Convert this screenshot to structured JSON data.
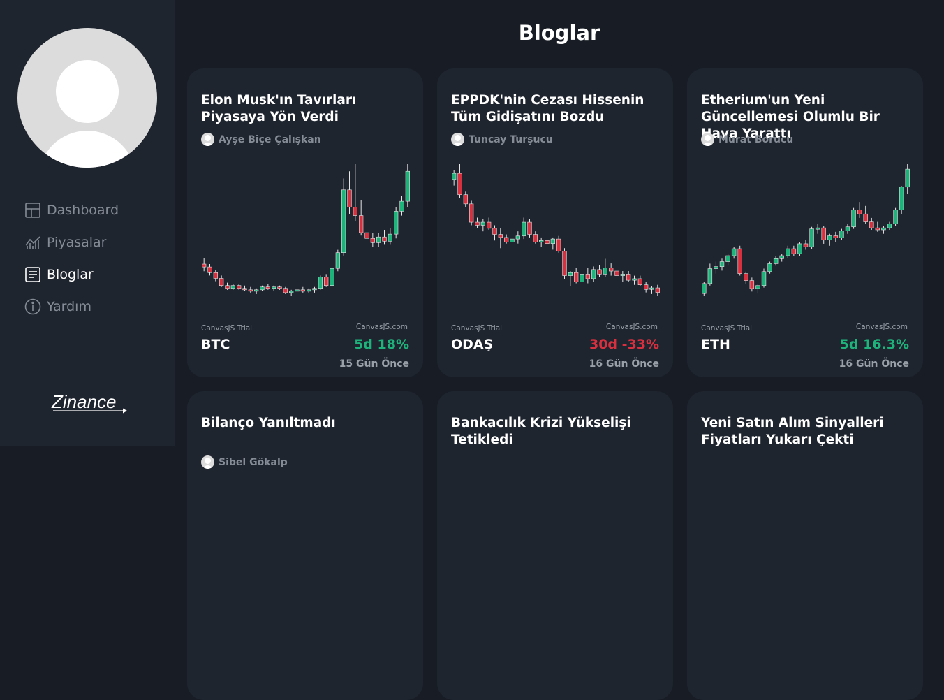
{
  "nav": {
    "items": [
      {
        "label": "Dashboard",
        "icon": "dashboard-icon",
        "active": false
      },
      {
        "label": "Piyasalar",
        "icon": "market-chart-icon",
        "active": false
      },
      {
        "label": "Bloglar",
        "icon": "blog-icon",
        "active": true
      },
      {
        "label": "Yardım",
        "icon": "info-icon",
        "active": false
      }
    ]
  },
  "logo_text": "Zinance",
  "page_title": "Bloglar",
  "colors": {
    "up": "#1fb37c",
    "down": "#d9303f",
    "wick": "#e6e6e6"
  },
  "cards": [
    {
      "title": "Elon Musk'ın Tavırları Piyasaya Yön Verdi",
      "author": "Ayşe Biçe Çalışkan",
      "ticker": "BTC",
      "change": "5d 18%",
      "trend": "up",
      "date": "15 Gün Önce",
      "trial_left": "CanvasJS Trial",
      "trial_right": "CanvasJS.com",
      "chart_data": {
        "type": "candlestick",
        "ohlc": [
          [
            60,
            64,
            55,
            58
          ],
          [
            58,
            60,
            52,
            54
          ],
          [
            54,
            56,
            48,
            50
          ],
          [
            50,
            52,
            44,
            45
          ],
          [
            45,
            47,
            42,
            43
          ],
          [
            43,
            46,
            42,
            45
          ],
          [
            45,
            46,
            42,
            43
          ],
          [
            43,
            45,
            41,
            42
          ],
          [
            42,
            44,
            40,
            41
          ],
          [
            41,
            43,
            39,
            42
          ],
          [
            42,
            45,
            41,
            44
          ],
          [
            44,
            46,
            42,
            43
          ],
          [
            43,
            45,
            41,
            44
          ],
          [
            44,
            45,
            42,
            43
          ],
          [
            43,
            44,
            39,
            40
          ],
          [
            40,
            42,
            38,
            41
          ],
          [
            41,
            43,
            40,
            42
          ],
          [
            42,
            44,
            40,
            41
          ],
          [
            41,
            43,
            40,
            42
          ],
          [
            42,
            44,
            40,
            43
          ],
          [
            43,
            52,
            42,
            51
          ],
          [
            51,
            53,
            44,
            45
          ],
          [
            45,
            58,
            44,
            57
          ],
          [
            57,
            70,
            55,
            68
          ],
          [
            68,
            120,
            66,
            112
          ],
          [
            112,
            125,
            95,
            100
          ],
          [
            100,
            130,
            90,
            94
          ],
          [
            94,
            105,
            80,
            82
          ],
          [
            82,
            88,
            75,
            78
          ],
          [
            78,
            82,
            72,
            75
          ],
          [
            75,
            82,
            72,
            79
          ],
          [
            79,
            84,
            74,
            76
          ],
          [
            76,
            85,
            74,
            81
          ],
          [
            81,
            100,
            78,
            97
          ],
          [
            97,
            108,
            94,
            104
          ],
          [
            104,
            130,
            100,
            125
          ]
        ]
      }
    },
    {
      "title": "EPPDK'nin Cezası Hissenin Tüm Gidişatını Bozdu",
      "author": "Tuncay Turşucu",
      "ticker": "ODAŞ",
      "change": "30d -33%",
      "trend": "down",
      "date": "16 Gün Önce",
      "trial_left": "CanvasJS Trial",
      "trial_right": "CanvasJS.com",
      "chart_data": {
        "type": "candlestick",
        "ohlc": [
          [
            100,
            106,
            96,
            104
          ],
          [
            104,
            110,
            88,
            90
          ],
          [
            90,
            92,
            82,
            84
          ],
          [
            84,
            86,
            70,
            72
          ],
          [
            72,
            75,
            68,
            70
          ],
          [
            70,
            74,
            66,
            72
          ],
          [
            72,
            75,
            67,
            68
          ],
          [
            68,
            70,
            60,
            64
          ],
          [
            64,
            68,
            55,
            62
          ],
          [
            62,
            64,
            58,
            59
          ],
          [
            59,
            63,
            55,
            61
          ],
          [
            61,
            66,
            58,
            63
          ],
          [
            63,
            75,
            61,
            72
          ],
          [
            72,
            74,
            62,
            64
          ],
          [
            64,
            66,
            58,
            59
          ],
          [
            59,
            62,
            56,
            60
          ],
          [
            60,
            64,
            56,
            58
          ],
          [
            58,
            62,
            54,
            61
          ],
          [
            61,
            63,
            52,
            53
          ],
          [
            53,
            55,
            35,
            37
          ],
          [
            37,
            40,
            30,
            39
          ],
          [
            39,
            42,
            32,
            33
          ],
          [
            33,
            40,
            30,
            38
          ],
          [
            38,
            42,
            32,
            35
          ],
          [
            35,
            43,
            33,
            41
          ],
          [
            41,
            44,
            36,
            38
          ],
          [
            38,
            48,
            36,
            42
          ],
          [
            42,
            45,
            37,
            40
          ],
          [
            40,
            42,
            35,
            37
          ],
          [
            37,
            40,
            33,
            38
          ],
          [
            38,
            40,
            33,
            34
          ],
          [
            34,
            37,
            31,
            35
          ],
          [
            35,
            37,
            30,
            31
          ],
          [
            31,
            33,
            26,
            28
          ],
          [
            28,
            30,
            25,
            29
          ],
          [
            29,
            31,
            24,
            26
          ]
        ]
      }
    },
    {
      "title": "Etherium'un Yeni Güncellemesi Olumlu Bir Hava Yarattı",
      "author": "Murat Borucu",
      "ticker": "ETH",
      "change": "5d 16.3%",
      "trend": "up",
      "date": "16 Gün Önce",
      "trial_left": "CanvasJS Trial",
      "trial_right": "CanvasJS.com",
      "chart_data": {
        "type": "candlestick",
        "ohlc": [
          [
            20,
            32,
            18,
            30
          ],
          [
            30,
            50,
            28,
            45
          ],
          [
            45,
            52,
            40,
            47
          ],
          [
            47,
            55,
            43,
            52
          ],
          [
            52,
            60,
            48,
            58
          ],
          [
            58,
            67,
            55,
            65
          ],
          [
            65,
            68,
            38,
            40
          ],
          [
            40,
            42,
            30,
            33
          ],
          [
            33,
            36,
            22,
            25
          ],
          [
            25,
            30,
            20,
            28
          ],
          [
            28,
            45,
            26,
            42
          ],
          [
            42,
            52,
            40,
            50
          ],
          [
            50,
            58,
            48,
            55
          ],
          [
            55,
            60,
            52,
            58
          ],
          [
            58,
            68,
            56,
            65
          ],
          [
            65,
            68,
            58,
            60
          ],
          [
            60,
            72,
            58,
            70
          ],
          [
            70,
            74,
            64,
            67
          ],
          [
            67,
            87,
            65,
            85
          ],
          [
            85,
            90,
            80,
            86
          ],
          [
            86,
            88,
            70,
            74
          ],
          [
            74,
            80,
            68,
            78
          ],
          [
            78,
            82,
            72,
            76
          ],
          [
            76,
            85,
            74,
            83
          ],
          [
            83,
            90,
            80,
            87
          ],
          [
            87,
            106,
            85,
            104
          ],
          [
            104,
            112,
            96,
            100
          ],
          [
            100,
            108,
            90,
            92
          ],
          [
            92,
            96,
            84,
            86
          ],
          [
            86,
            92,
            82,
            84
          ],
          [
            84,
            88,
            80,
            86
          ],
          [
            86,
            92,
            84,
            90
          ],
          [
            90,
            106,
            88,
            104
          ],
          [
            104,
            128,
            100,
            127
          ],
          [
            127,
            150,
            120,
            145
          ]
        ]
      }
    }
  ],
  "cards_row2": [
    {
      "title": "Bilanço Yanıltmadı",
      "author": "Sibel Gökalp"
    },
    {
      "title": "Bankacılık Krizi Yükselişi Tetikledi",
      "author": ""
    },
    {
      "title": "Yeni Satın Alım Sinyalleri Fiyatları Yukarı Çekti",
      "author": ""
    }
  ]
}
